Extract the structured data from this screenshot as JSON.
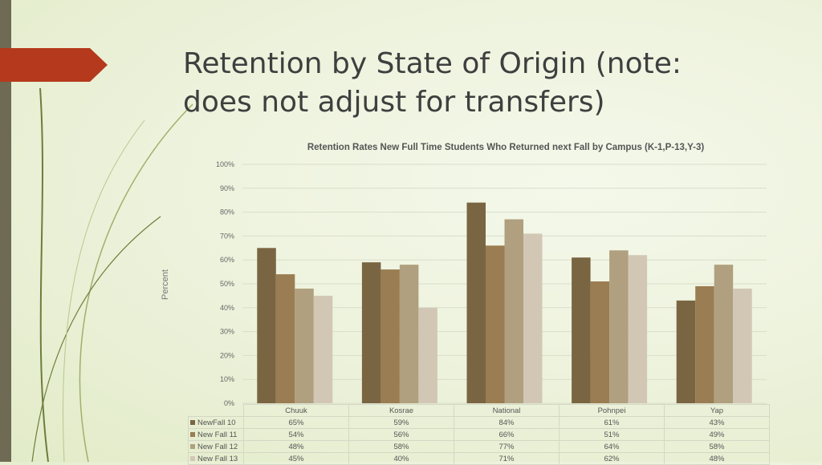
{
  "slide": {
    "title": "Retention by State of Origin (note: does not adjust for transfers)"
  },
  "chart_data": {
    "type": "bar",
    "title": "Retention Rates New Full Time Students Who Returned next Fall by Campus (K-1,P-13,Y-3)",
    "xlabel": "",
    "ylabel": "Percent",
    "ylim": [
      0,
      100
    ],
    "yticks": [
      "0%",
      "10%",
      "20%",
      "30%",
      "40%",
      "50%",
      "60%",
      "70%",
      "80%",
      "90%",
      "100%"
    ],
    "grid": true,
    "categories": [
      "Chuuk",
      "Kosrae",
      "National",
      "Pohnpei",
      "Yap"
    ],
    "series": [
      {
        "name": "NewFall 10",
        "color": "#7a6543",
        "values": [
          65,
          59,
          84,
          61,
          43
        ],
        "labels": [
          "65%",
          "59%",
          "84%",
          "61%",
          "43%"
        ]
      },
      {
        "name": "New Fall 11",
        "color": "#9a7d52",
        "values": [
          54,
          56,
          66,
          51,
          49
        ],
        "labels": [
          "54%",
          "56%",
          "66%",
          "51%",
          "49%"
        ]
      },
      {
        "name": "New Fall 12",
        "color": "#b0a07f",
        "values": [
          48,
          58,
          77,
          64,
          58
        ],
        "labels": [
          "48%",
          "58%",
          "77%",
          "64%",
          "58%"
        ]
      },
      {
        "name": "New Fall 13",
        "color": "#d2c7b5",
        "values": [
          45,
          40,
          71,
          62,
          48
        ],
        "labels": [
          "45%",
          "40%",
          "71%",
          "62%",
          "48%"
        ]
      }
    ]
  }
}
